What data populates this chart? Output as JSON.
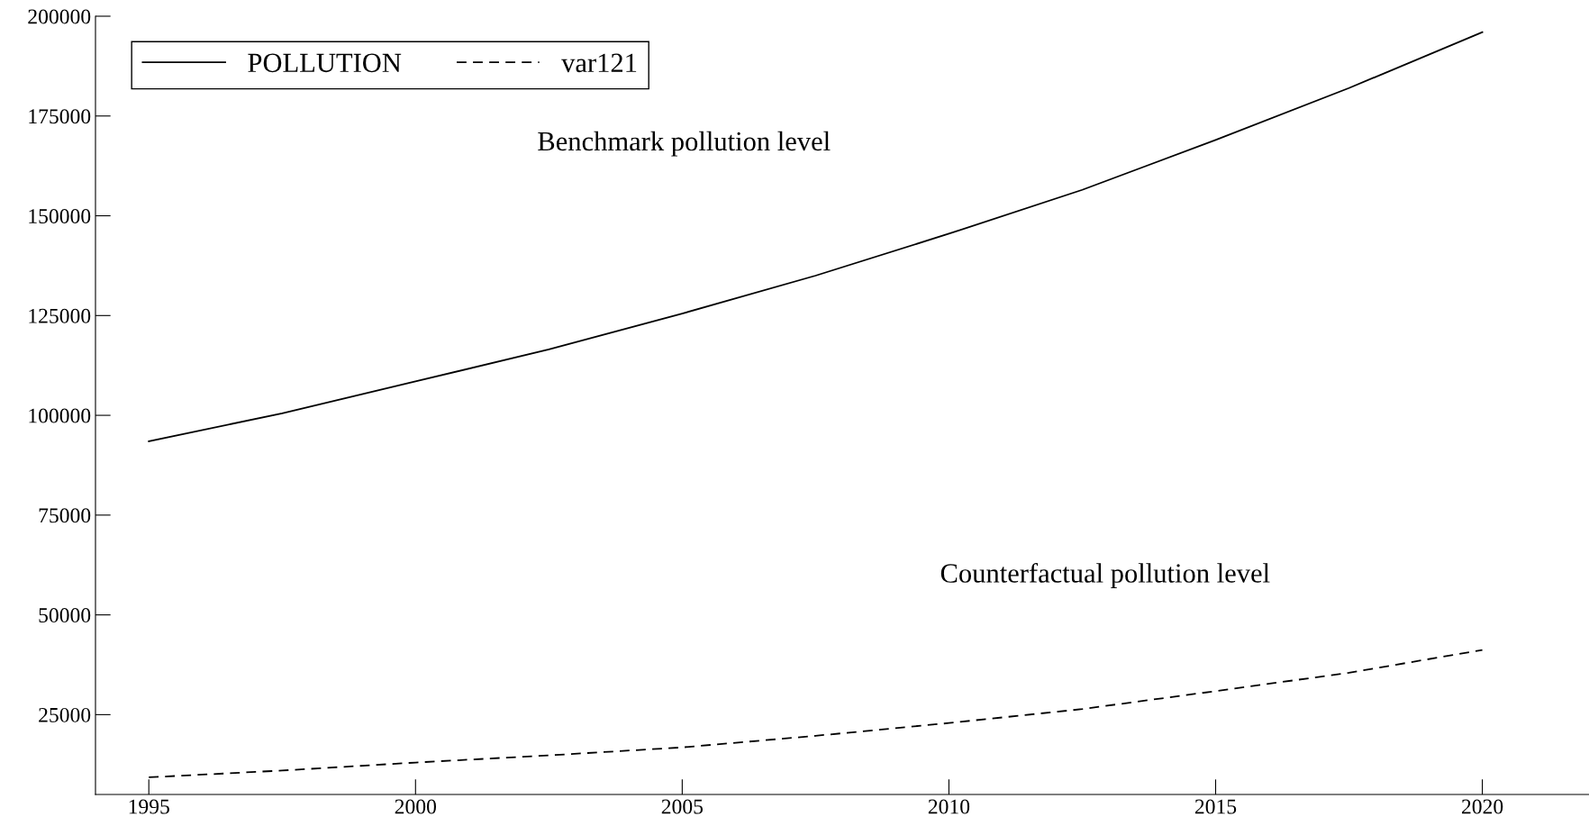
{
  "chart_data": {
    "type": "line",
    "x": [
      1995,
      1997.5,
      2000,
      2002.5,
      2005,
      2007.5,
      2010,
      2012.5,
      2015,
      2017.5,
      2020
    ],
    "series": [
      {
        "name": "POLLUTION",
        "color": "#000000",
        "line_style": "solid",
        "values": [
          93500,
          100500,
          108500,
          116500,
          125500,
          135000,
          145500,
          156500,
          169000,
          182000,
          196000
        ]
      },
      {
        "name": "var121",
        "color": "#000000",
        "line_style": "dashed",
        "values": [
          9300,
          11000,
          13000,
          14800,
          16800,
          19700,
          22900,
          26400,
          30900,
          35500,
          41200
        ]
      }
    ],
    "xlim": [
      1994,
      2022
    ],
    "xticks": [
      1995,
      2000,
      2005,
      2010,
      2015,
      2020
    ],
    "ylim": [
      5000,
      200000
    ],
    "yticks": [
      25000,
      50000,
      75000,
      100000,
      125000,
      150000,
      175000,
      200000
    ],
    "annotations": [
      "Benchmark pollution level",
      "Counterfactual pollution level"
    ],
    "grid": false,
    "legend": "top left",
    "marker": "none"
  }
}
